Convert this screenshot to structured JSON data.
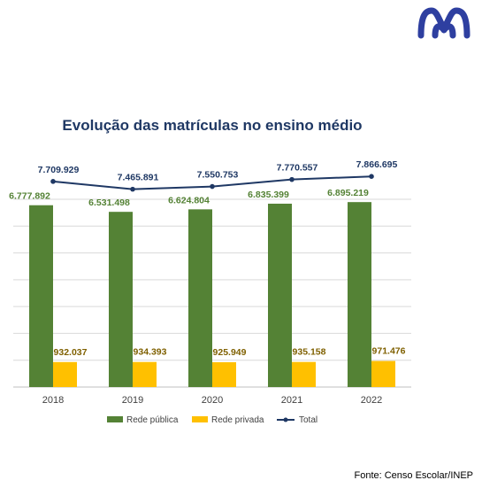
{
  "logo": {
    "icon": "brand-logo-icon",
    "color": "#2e3fa0"
  },
  "source": "Fonte: Censo Escolar/INEP",
  "colors": {
    "publica": "#548235",
    "privada": "#ffc000",
    "total": "#1f3864",
    "grid": "#d9d9d9"
  },
  "chart_data": {
    "type": "bar",
    "title": "Evolução das matrículas no ensino médio",
    "categories": [
      "2018",
      "2019",
      "2020",
      "2021",
      "2022"
    ],
    "series": [
      {
        "name": "Rede pública",
        "type": "bar",
        "values": [
          6777892,
          6531498,
          6624804,
          6835399,
          6895219
        ],
        "labels": [
          "6.777.892",
          "6.531.498",
          "6.624.804",
          "6.835.399",
          "6.895.219"
        ]
      },
      {
        "name": "Rede privada",
        "type": "bar",
        "values": [
          932037,
          934393,
          925949,
          935158,
          971476
        ],
        "labels": [
          "932.037",
          "934.393",
          "925.949",
          "935.158",
          "971.476"
        ]
      },
      {
        "name": "Total",
        "type": "line",
        "values": [
          7709929,
          7465891,
          7550753,
          7770557,
          7866695
        ],
        "labels": [
          "7.709.929",
          "7.465.891",
          "7.550.753",
          "7.770.557",
          "7.866.695"
        ]
      }
    ],
    "ylim": [
      0,
      7000000
    ],
    "grid": true,
    "legend": "bottom"
  }
}
